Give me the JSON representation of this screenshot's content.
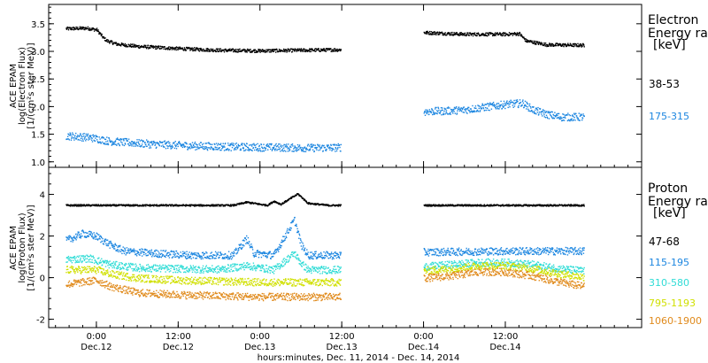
{
  "chart_data": [
    {
      "type": "scatter",
      "ylabel_lines": [
        "ACE EPAM",
        "log(Electron Flux)",
        "[1/(cm²s ster MeV)]"
      ],
      "ylim": [
        0.9,
        3.85
      ],
      "yticks": [
        "1.0",
        "1.5",
        "2.0",
        "2.5",
        "3.0",
        "3.5"
      ],
      "legend_title_lines": [
        "Electron",
        "Energy ranges",
        "[keV]"
      ],
      "series": [
        {
          "name": "38-53",
          "color": "#000000",
          "segments": [
            {
              "x": [
                -4.5,
                -1.5,
                0.0,
                1.0,
                1.5,
                3.0,
                6.0,
                9.0,
                12.0,
                18.0,
                24.0,
                30.0,
                35.8
              ],
              "y": [
                3.42,
                3.43,
                3.4,
                3.25,
                3.2,
                3.14,
                3.1,
                3.08,
                3.06,
                3.03,
                3.02,
                3.03,
                3.04
              ]
            },
            {
              "x": [
                48.0,
                54.0,
                60.0,
                62.0,
                63.0,
                66.0,
                71.5
              ],
              "y": [
                3.35,
                3.32,
                3.32,
                3.33,
                3.2,
                3.13,
                3.12
              ]
            }
          ]
        },
        {
          "name": "175-315",
          "color": "#1c86e0",
          "segments": [
            {
              "x": [
                -4.5,
                -1.0,
                2.0,
                8.0,
                14.0,
                20.0,
                26.0,
                32.0,
                35.8
              ],
              "y": [
                1.48,
                1.45,
                1.38,
                1.33,
                1.3,
                1.28,
                1.27,
                1.26,
                1.27
              ]
            },
            {
              "x": [
                48.0,
                51.0,
                54.0,
                57.0,
                60.0,
                62.5,
                64.0,
                66.0,
                68.0,
                71.5
              ],
              "y": [
                1.92,
                1.93,
                1.95,
                2.0,
                2.05,
                2.07,
                1.95,
                1.87,
                1.82,
                1.82
              ]
            }
          ]
        }
      ]
    },
    {
      "type": "scatter",
      "ylabel_lines": [
        "ACE EPAM",
        "log(Proton Flux)",
        "[1/(cm²s ster MeV)]"
      ],
      "ylim": [
        -2.4,
        5.3
      ],
      "yticks": [
        "-2",
        "0",
        "2",
        "4"
      ],
      "legend_title_lines": [
        "Proton",
        "Energy ranges",
        "[keV]"
      ],
      "series": [
        {
          "name": "47-68",
          "color": "#000000",
          "segments": [
            {
              "x": [
                -4.5,
                10.0,
                20.0,
                22.0,
                25.0,
                26.0,
                27.0,
                29.5,
                31.0,
                34.0,
                35.8
              ],
              "y": [
                3.5,
                3.5,
                3.5,
                3.65,
                3.5,
                3.7,
                3.55,
                4.05,
                3.6,
                3.5,
                3.5
              ]
            },
            {
              "x": [
                48.0,
                60.0,
                71.5
              ],
              "y": [
                3.5,
                3.5,
                3.5
              ]
            }
          ]
        },
        {
          "name": "115-195",
          "color": "#1c86e0",
          "segments": [
            {
              "x": [
                -4.5,
                -2.0,
                0.0,
                2.0,
                4.0,
                8.0,
                14.0,
                20.0,
                22.0,
                23.0,
                26.0,
                29.0,
                30.0,
                31.0,
                33.0,
                35.8
              ],
              "y": [
                1.8,
                2.15,
                2.0,
                1.6,
                1.3,
                1.2,
                1.1,
                1.1,
                1.9,
                1.2,
                1.1,
                2.8,
                1.6,
                1.1,
                1.1,
                1.1
              ]
            },
            {
              "x": [
                48.0,
                60.0,
                71.5
              ],
              "y": [
                1.25,
                1.3,
                1.3
              ]
            }
          ]
        },
        {
          "name": "310-580",
          "color": "#30dcd6",
          "segments": [
            {
              "x": [
                -4.5,
                -1.0,
                0.0,
                2.0,
                6.0,
                12.0,
                18.0,
                22.0,
                26.0,
                29.0,
                30.0,
                31.0,
                35.8
              ],
              "y": [
                0.9,
                0.95,
                0.85,
                0.65,
                0.5,
                0.45,
                0.42,
                0.6,
                0.4,
                1.2,
                0.7,
                0.4,
                0.4
              ]
            },
            {
              "x": [
                48.0,
                52.0,
                56.0,
                60.0,
                64.0,
                68.0,
                71.5
              ],
              "y": [
                0.55,
                0.65,
                0.75,
                0.75,
                0.65,
                0.45,
                0.35
              ]
            }
          ]
        },
        {
          "name": "795-1193",
          "color": "#d0e000",
          "segments": [
            {
              "x": [
                -4.5,
                0.0,
                2.0,
                6.0,
                12.0,
                18.0,
                24.0,
                30.0,
                35.8
              ],
              "y": [
                0.4,
                0.4,
                0.2,
                0.0,
                -0.1,
                -0.15,
                -0.2,
                -0.2,
                -0.2
              ]
            },
            {
              "x": [
                48.0,
                52.0,
                56.0,
                60.0,
                64.0,
                68.0,
                71.5
              ],
              "y": [
                0.35,
                0.45,
                0.6,
                0.6,
                0.45,
                0.2,
                0.05
              ]
            }
          ]
        },
        {
          "name": "1060-1900",
          "color": "#e08a1c",
          "segments": [
            {
              "x": [
                -4.5,
                0.0,
                2.0,
                6.0,
                12.0,
                18.0,
                24.0,
                30.0,
                35.8
              ],
              "y": [
                -0.3,
                -0.1,
                -0.4,
                -0.7,
                -0.8,
                -0.85,
                -0.9,
                -0.9,
                -0.9
              ]
            },
            {
              "x": [
                48.0,
                52.0,
                56.0,
                60.0,
                64.0,
                68.0,
                71.5
              ],
              "y": [
                0.0,
                0.1,
                0.3,
                0.3,
                0.1,
                -0.2,
                -0.4
              ]
            }
          ]
        }
      ]
    }
  ],
  "xaxis": {
    "xlim": [
      -7.0,
      80.0
    ],
    "ticks": [
      {
        "x": 0,
        "time": "0:00",
        "date": "Dec.12"
      },
      {
        "x": 12,
        "time": "12:00",
        "date": "Dec.12"
      },
      {
        "x": 24,
        "time": "0:00",
        "date": "Dec.13"
      },
      {
        "x": 36,
        "time": "12:00",
        "date": "Dec.13"
      },
      {
        "x": 48,
        "time": "0:00",
        "date": "Dec.14"
      },
      {
        "x": 60,
        "time": "12:00",
        "date": "Dec.14"
      }
    ],
    "label": "hours:minutes, Dec. 11, 2014 - Dec. 14, 2014"
  }
}
